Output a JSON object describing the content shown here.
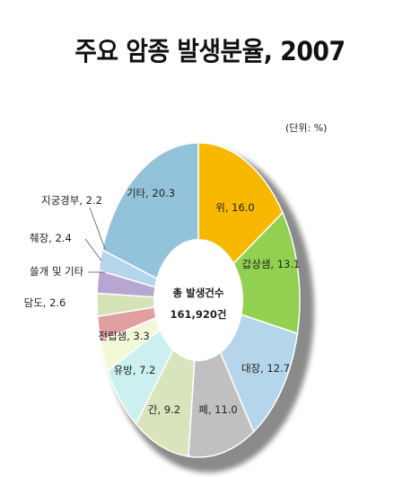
{
  "title": "주요 암종 발생분율, 2007",
  "unit": "(단위: %)",
  "center": {
    "line1": "총 발생건수",
    "line2": "161,920건"
  },
  "chart_data": {
    "type": "pie",
    "title": "주요 암종 발생분율, 2007",
    "unit": "%",
    "donut": true,
    "slices": [
      {
        "label": "위, 16.0",
        "name": "위",
        "value": 16.0,
        "color": "#f8b800"
      },
      {
        "label": "갑상샘, 13.1",
        "name": "갑상샘",
        "value": 13.1,
        "color": "#92d050"
      },
      {
        "label": "대장, 12.7",
        "name": "대장",
        "value": 12.7,
        "color": "#b5d6ea"
      },
      {
        "label": "폐, 11.0",
        "name": "폐",
        "value": 11.0,
        "color": "#c0c0c0"
      },
      {
        "label": "간, 9.2",
        "name": "간",
        "value": 9.2,
        "color": "#d7e4bc"
      },
      {
        "label": "유방, 7.2",
        "name": "유방",
        "value": 7.2,
        "color": "#ccf0f0"
      },
      {
        "label": "전립샘, 3.3",
        "name": "전립샘",
        "value": 3.3,
        "color": "#f2f7d8"
      },
      {
        "label": "담도, 2.6",
        "name": "담도",
        "value": 2.6,
        "color": "#e0a0a0"
      },
      {
        "label": "쓸개 및 기타",
        "name": "쓸개 및 기타",
        "value": 2.4,
        "color": "#d3e3b6"
      },
      {
        "label": "췌장, 2.4",
        "name": "췌장",
        "value": 2.4,
        "color": "#b7a6d2"
      },
      {
        "label": "지궁경부, 2.2",
        "name": "지궁경부",
        "value": 2.2,
        "color": "#b5d6ea"
      },
      {
        "label": "기타, 20.3",
        "name": "기타",
        "value": 20.3,
        "color": "#93c3da"
      }
    ]
  }
}
